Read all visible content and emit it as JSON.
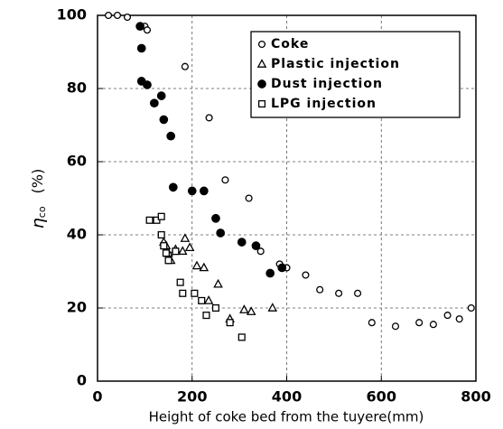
{
  "chart_data": {
    "type": "scatter",
    "xlabel": "Height of coke bed from the tuyere(mm)",
    "ylabel": {
      "symbol": "η",
      "subscript": "co",
      "unit": "(%)"
    },
    "xlim": [
      0,
      800
    ],
    "xticks": [
      0,
      200,
      400,
      600,
      800
    ],
    "ylim": [
      0,
      100
    ],
    "yticks": [
      0,
      20,
      40,
      60,
      80,
      100
    ],
    "grid": true,
    "legend": "upper right",
    "series": [
      {
        "name": "Coke",
        "color": "#000000",
        "marker": "circle-open",
        "x": [
          23,
          42,
          63,
          100,
          105,
          185,
          236,
          270,
          320,
          345,
          385,
          400,
          440,
          470,
          510,
          550,
          580,
          630,
          680,
          710,
          740,
          765,
          790
        ],
        "y": [
          100,
          100,
          99.5,
          97,
          96,
          86,
          72,
          55,
          50,
          35.5,
          32,
          31,
          29,
          25,
          24,
          24,
          16,
          15,
          16,
          15.5,
          18,
          17,
          20
        ]
      },
      {
        "name": "Plastic injection",
        "color": "#000000",
        "marker": "triangle-open",
        "x": [
          140,
          145,
          150,
          155,
          165,
          180,
          185,
          195,
          210,
          225,
          235,
          255,
          280,
          310,
          325,
          370
        ],
        "y": [
          38,
          37,
          35,
          33,
          36,
          35.5,
          39,
          36.5,
          31.5,
          31,
          22,
          26.5,
          17,
          19.5,
          19,
          20
        ]
      },
      {
        "name": "Dust injection",
        "color": "#000000",
        "marker": "circle-filled",
        "x": [
          90,
          93,
          93,
          105,
          120,
          135,
          140,
          155,
          160,
          200,
          225,
          250,
          260,
          305,
          335,
          365,
          390
        ],
        "y": [
          97,
          91,
          82,
          81,
          76,
          78,
          71.5,
          67,
          53,
          52,
          52,
          44.5,
          40.5,
          38,
          37,
          29.5,
          31
        ]
      },
      {
        "name": "LPG injection",
        "color": "#000000",
        "marker": "square-open",
        "x": [
          110,
          125,
          135,
          135,
          140,
          145,
          150,
          165,
          175,
          180,
          205,
          220,
          230,
          250,
          280,
          305
        ],
        "y": [
          44,
          44,
          45,
          40,
          37,
          35,
          33,
          35.5,
          27,
          24,
          24,
          22,
          18,
          20,
          16,
          12
        ]
      }
    ]
  }
}
